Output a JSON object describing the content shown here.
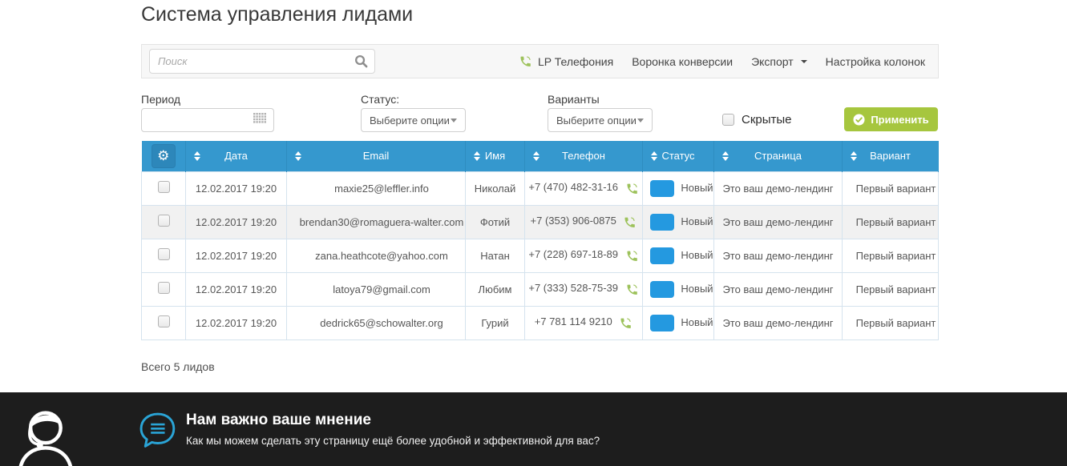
{
  "page": {
    "title": "Система управления лидами",
    "summary": "Всего 5 лидов"
  },
  "toolbar": {
    "search": {
      "placeholder": "Поиск",
      "value": "",
      "icon": "search-icon"
    },
    "links": [
      {
        "label": "LP Телефония",
        "icon": "phone-icon"
      },
      {
        "label": "Воронка конверсии"
      },
      {
        "label": "Экспорт",
        "dropdown": true
      },
      {
        "label": "Настройка колонок"
      }
    ]
  },
  "filters": {
    "period": {
      "label": "Период",
      "value": "",
      "icon": "calendar-icon"
    },
    "status": {
      "label": "Статус:",
      "value": "Выберите опции"
    },
    "variants": {
      "label": "Варианты",
      "value": "Выберите опции"
    },
    "hidden": {
      "label": "Скрытые",
      "checked": false
    },
    "apply": {
      "label": "Применить",
      "icon": "check-circle-icon"
    }
  },
  "table": {
    "columns": [
      "Дата",
      "Email",
      "Имя",
      "Телефон",
      "Статус",
      "Страница",
      "Вариант"
    ],
    "rows": [
      {
        "date": "12.02.2017 19:20",
        "email": "maxie25@leffler.info",
        "name": "Николай",
        "phone": "+7 (470) 482-31-16",
        "status": "Новый",
        "page": "Это ваш демо-лендинг",
        "variant": "Первый вариант"
      },
      {
        "date": "12.02.2017 19:20",
        "email": "brendan30@romaguera-walter.com",
        "name": "Фотий",
        "phone": "+7 (353) 906-0875",
        "status": "Новый",
        "page": "Это ваш демо-лендинг",
        "variant": "Первый вариант"
      },
      {
        "date": "12.02.2017 19:20",
        "email": "zana.heathcote@yahoo.com",
        "name": "Натан",
        "phone": "+7 (228) 697-18-89",
        "status": "Новый",
        "page": "Это ваш демо-лендинг",
        "variant": "Первый вариант"
      },
      {
        "date": "12.02.2017 19:20",
        "email": "latoya79@gmail.com",
        "name": "Любим",
        "phone": "+7 (333) 528-75-39",
        "status": "Новый",
        "page": "Это ваш демо-лендинг",
        "variant": "Первый вариант"
      },
      {
        "date": "12.02.2017 19:20",
        "email": "dedrick65@schowalter.org",
        "name": "Гурий",
        "phone": "+7 781 114 9210",
        "status": "Новый",
        "page": "Это ваш демо-лендинг",
        "variant": "Первый вариант"
      }
    ]
  },
  "footer": {
    "title": "Нам важно ваше мнение",
    "subtitle": "Как мы можем сделать эту страницу ещё более удобной и эффективной для вас?"
  },
  "colors": {
    "table_header_blue": "#3598ce",
    "status_badge_blue": "#2499e0",
    "apply_button_green": "#a6c63e",
    "phone_icon_green": "#9dc25b",
    "footer_background": "#1d1d1d",
    "footer_accent_blue": "#2aa4d6"
  }
}
